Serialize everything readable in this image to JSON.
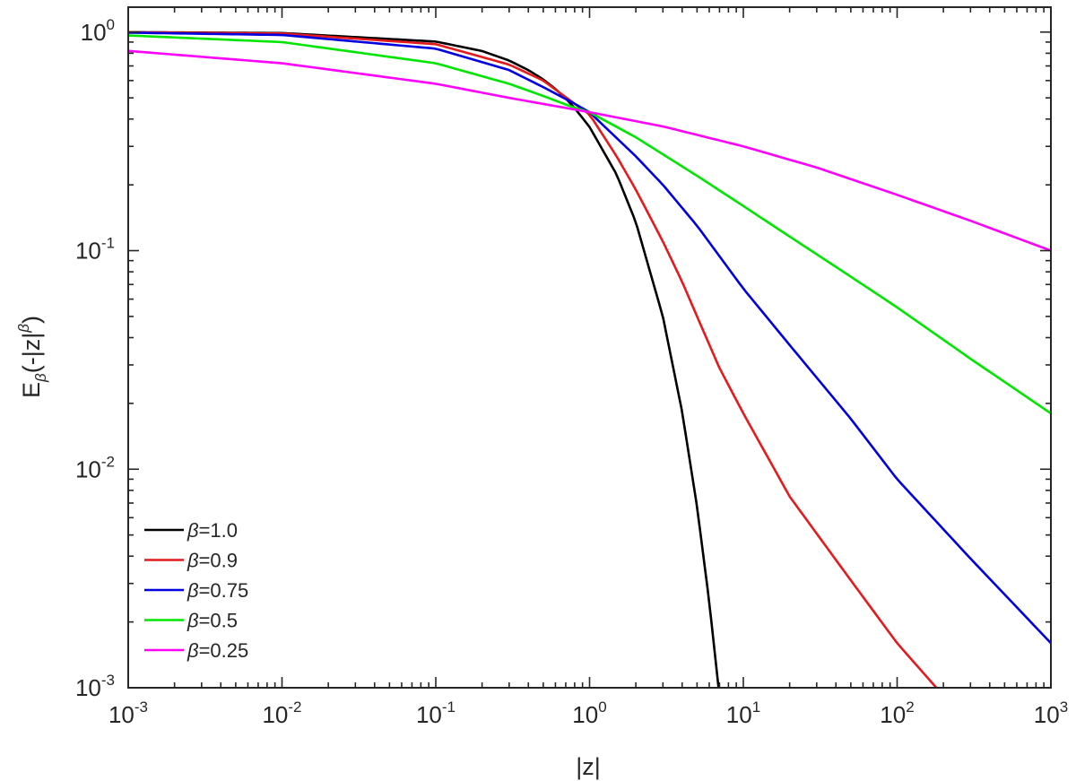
{
  "chart_data": {
    "type": "line",
    "title": "",
    "xlabel": "|z|",
    "ylabel": {
      "base": "E",
      "sub": "β",
      "arg_prefix": "(-|z|",
      "arg_sup": "β",
      "arg_suffix": ")"
    },
    "xscale": "log",
    "yscale": "log",
    "xlim": [
      0.001,
      1000
    ],
    "ylim": [
      0.001,
      1.3
    ],
    "grid": false,
    "legend_position": "bottom-left",
    "x_ticks": [
      {
        "base": "10",
        "exp": "-3"
      },
      {
        "base": "10",
        "exp": "-2"
      },
      {
        "base": "10",
        "exp": "-1"
      },
      {
        "base": "10",
        "exp": "0"
      },
      {
        "base": "10",
        "exp": "1"
      },
      {
        "base": "10",
        "exp": "2"
      },
      {
        "base": "10",
        "exp": "3"
      }
    ],
    "y_ticks": [
      {
        "base": "10",
        "exp": "-3"
      },
      {
        "base": "10",
        "exp": "-2"
      },
      {
        "base": "10",
        "exp": "-1"
      },
      {
        "base": "10",
        "exp": "0"
      }
    ],
    "series": [
      {
        "name": "1.0",
        "color": "#000000",
        "x": [
          0.001,
          0.01,
          0.1,
          0.2,
          0.3,
          0.4,
          0.5,
          0.6,
          0.7,
          0.8,
          1,
          1.5,
          2,
          3,
          4,
          5,
          6,
          6.9
        ],
        "y": [
          0.999,
          0.99,
          0.905,
          0.819,
          0.741,
          0.67,
          0.607,
          0.549,
          0.497,
          0.449,
          0.368,
          0.223,
          0.135,
          0.0498,
          0.0183,
          0.00674,
          0.00248,
          0.001
        ]
      },
      {
        "name": "0.9",
        "color": "#e41a1c",
        "x": [
          0.001,
          0.01,
          0.1,
          0.3,
          0.5,
          0.8,
          1,
          1.5,
          2,
          3,
          4,
          5,
          7,
          10,
          20,
          50,
          100,
          180
        ],
        "y": [
          0.998,
          0.985,
          0.88,
          0.71,
          0.6,
          0.47,
          0.42,
          0.27,
          0.19,
          0.11,
          0.072,
          0.05,
          0.029,
          0.018,
          0.0075,
          0.0031,
          0.0016,
          0.001
        ]
      },
      {
        "name": "0.75",
        "color": "#0000e0",
        "x": [
          0.001,
          0.01,
          0.1,
          0.3,
          0.5,
          0.8,
          1,
          2,
          3,
          5,
          10,
          20,
          50,
          100,
          300,
          1000
        ],
        "y": [
          0.994,
          0.97,
          0.84,
          0.67,
          0.56,
          0.47,
          0.43,
          0.27,
          0.2,
          0.13,
          0.067,
          0.037,
          0.017,
          0.009,
          0.0039,
          0.0016
        ]
      },
      {
        "name": "0.5",
        "color": "#00e600",
        "x": [
          0.001,
          0.01,
          0.1,
          0.3,
          0.5,
          0.8,
          1,
          2,
          5,
          10,
          20,
          50,
          100,
          300,
          1000
        ],
        "y": [
          0.965,
          0.9,
          0.72,
          0.58,
          0.51,
          0.45,
          0.43,
          0.33,
          0.22,
          0.16,
          0.116,
          0.076,
          0.055,
          0.032,
          0.018
        ]
      },
      {
        "name": "0.25",
        "color": "#ff00ff",
        "x": [
          0.001,
          0.01,
          0.1,
          0.3,
          1,
          3,
          10,
          30,
          100,
          300,
          1000
        ],
        "y": [
          0.82,
          0.72,
          0.58,
          0.5,
          0.43,
          0.37,
          0.3,
          0.24,
          0.18,
          0.137,
          0.1
        ]
      }
    ],
    "legend_symbol": "β",
    "legend_eq": "="
  }
}
